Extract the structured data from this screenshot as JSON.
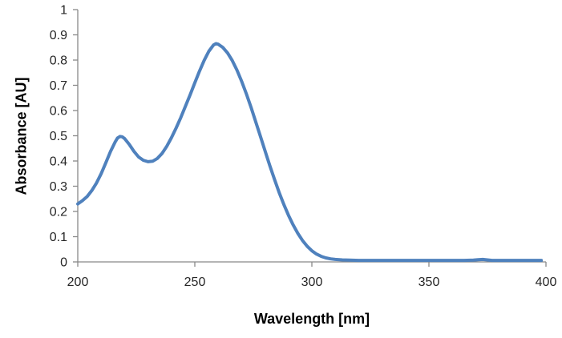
{
  "chart_data": {
    "type": "line",
    "title": "",
    "xlabel": "Wavelength [nm]",
    "ylabel": "Absorbance [AU]",
    "xlim": [
      200,
      400
    ],
    "ylim": [
      0,
      1
    ],
    "xticks": [
      "200",
      "250",
      "300",
      "350",
      "400"
    ],
    "yticks": [
      "0",
      "0.1",
      "0.2",
      "0.3",
      "0.4",
      "0.5",
      "0.6",
      "0.7",
      "0.8",
      "0.9",
      "1"
    ],
    "grid": false,
    "legend_position": "none",
    "axis_color": "#898989",
    "series": [
      {
        "name": "absorbance-spectrum",
        "color": "#4F81BD",
        "stroke_width": 4,
        "points": [
          [
            200,
            0.23
          ],
          [
            202,
            0.243
          ],
          [
            204,
            0.259
          ],
          [
            206,
            0.283
          ],
          [
            208,
            0.313
          ],
          [
            210,
            0.35
          ],
          [
            212,
            0.393
          ],
          [
            214,
            0.438
          ],
          [
            216,
            0.476
          ],
          [
            217,
            0.491
          ],
          [
            218,
            0.497
          ],
          [
            219,
            0.496
          ],
          [
            220,
            0.489
          ],
          [
            222,
            0.466
          ],
          [
            224,
            0.438
          ],
          [
            226,
            0.416
          ],
          [
            228,
            0.403
          ],
          [
            230,
            0.397
          ],
          [
            232,
            0.399
          ],
          [
            234,
            0.41
          ],
          [
            236,
            0.43
          ],
          [
            238,
            0.458
          ],
          [
            240,
            0.492
          ],
          [
            242,
            0.53
          ],
          [
            244,
            0.572
          ],
          [
            246,
            0.617
          ],
          [
            248,
            0.663
          ],
          [
            250,
            0.71
          ],
          [
            252,
            0.756
          ],
          [
            254,
            0.799
          ],
          [
            256,
            0.835
          ],
          [
            258,
            0.86
          ],
          [
            259,
            0.865
          ],
          [
            260,
            0.863
          ],
          [
            262,
            0.85
          ],
          [
            264,
            0.828
          ],
          [
            266,
            0.798
          ],
          [
            268,
            0.76
          ],
          [
            270,
            0.716
          ],
          [
            272,
            0.667
          ],
          [
            274,
            0.613
          ],
          [
            276,
            0.556
          ],
          [
            278,
            0.498
          ],
          [
            280,
            0.44
          ],
          [
            282,
            0.383
          ],
          [
            284,
            0.328
          ],
          [
            286,
            0.276
          ],
          [
            288,
            0.228
          ],
          [
            290,
            0.185
          ],
          [
            292,
            0.147
          ],
          [
            294,
            0.113
          ],
          [
            296,
            0.085
          ],
          [
            298,
            0.062
          ],
          [
            300,
            0.044
          ],
          [
            302,
            0.031
          ],
          [
            304,
            0.022
          ],
          [
            306,
            0.016
          ],
          [
            308,
            0.012
          ],
          [
            310,
            0.01
          ],
          [
            313,
            0.008
          ],
          [
            316,
            0.007
          ],
          [
            320,
            0.006
          ],
          [
            325,
            0.006
          ],
          [
            330,
            0.006
          ],
          [
            335,
            0.006
          ],
          [
            340,
            0.006
          ],
          [
            345,
            0.006
          ],
          [
            350,
            0.006
          ],
          [
            355,
            0.006
          ],
          [
            360,
            0.006
          ],
          [
            365,
            0.006
          ],
          [
            369,
            0.007
          ],
          [
            371,
            0.009
          ],
          [
            373,
            0.01
          ],
          [
            375,
            0.008
          ],
          [
            377,
            0.006
          ],
          [
            381,
            0.006
          ],
          [
            386,
            0.006
          ],
          [
            392,
            0.006
          ],
          [
            398,
            0.006
          ]
        ]
      }
    ]
  }
}
